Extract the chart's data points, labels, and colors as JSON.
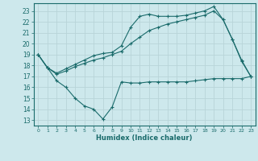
{
  "xlabel": "Humidex (Indice chaleur)",
  "bg_color": "#cde8ec",
  "grid_color": "#b8d4d8",
  "line_color": "#1a6b6b",
  "xlim": [
    -0.5,
    23.5
  ],
  "ylim": [
    12.5,
    23.7
  ],
  "yticks": [
    13,
    14,
    15,
    16,
    17,
    18,
    19,
    20,
    21,
    22,
    23
  ],
  "xticks": [
    0,
    1,
    2,
    3,
    4,
    5,
    6,
    7,
    8,
    9,
    10,
    11,
    12,
    13,
    14,
    15,
    16,
    17,
    18,
    19,
    20,
    21,
    22,
    23
  ],
  "line1_x": [
    0,
    1,
    2,
    3,
    4,
    5,
    6,
    7,
    8,
    9,
    10,
    11,
    12,
    13,
    14,
    15,
    16,
    17,
    18,
    19,
    20,
    21,
    22,
    23
  ],
  "line1_y": [
    19.0,
    17.8,
    16.6,
    16.0,
    15.0,
    14.3,
    14.0,
    13.1,
    14.2,
    16.5,
    16.4,
    16.4,
    16.5,
    16.5,
    16.5,
    16.5,
    16.5,
    16.6,
    16.7,
    16.8,
    16.8,
    16.8,
    16.8,
    17.0
  ],
  "line2_x": [
    0,
    1,
    2,
    3,
    4,
    5,
    6,
    7,
    8,
    9,
    10,
    11,
    12,
    13,
    14,
    15,
    16,
    17,
    18,
    19,
    20,
    21,
    22,
    23
  ],
  "line2_y": [
    19.0,
    17.8,
    17.2,
    17.5,
    17.9,
    18.2,
    18.5,
    18.7,
    19.0,
    19.3,
    20.0,
    20.6,
    21.2,
    21.5,
    21.8,
    22.0,
    22.2,
    22.4,
    22.6,
    23.0,
    22.2,
    20.4,
    18.4,
    17.0
  ],
  "line3_x": [
    0,
    1,
    2,
    3,
    4,
    5,
    6,
    7,
    8,
    9,
    10,
    11,
    12,
    13,
    14,
    15,
    16,
    17,
    18,
    19,
    20,
    21,
    22,
    23
  ],
  "line3_y": [
    19.0,
    17.8,
    17.3,
    17.7,
    18.1,
    18.5,
    18.9,
    19.1,
    19.2,
    19.8,
    21.5,
    22.5,
    22.7,
    22.5,
    22.5,
    22.5,
    22.6,
    22.8,
    23.0,
    23.4,
    22.2,
    20.4,
    18.5,
    17.0
  ]
}
